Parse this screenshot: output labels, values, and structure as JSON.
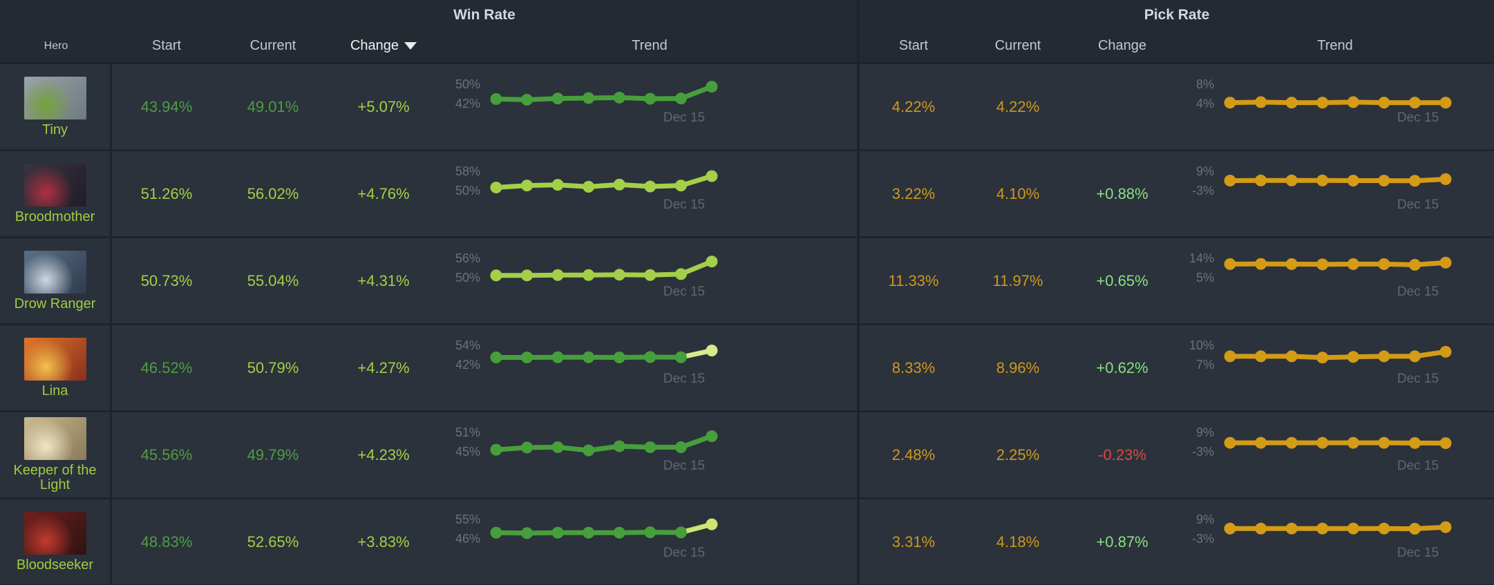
{
  "header": {
    "hero_label": "Hero",
    "win": {
      "title": "Win Rate",
      "start": "Start",
      "current": "Current",
      "change": "Change",
      "trend": "Trend",
      "sorted_by": "Change",
      "sort_direction": "desc"
    },
    "pick": {
      "title": "Pick Rate",
      "start": "Start",
      "current": "Current",
      "change": "Change",
      "trend": "Trend"
    }
  },
  "colors": {
    "page_bg": "#1d242c",
    "header_bg": "#232a32",
    "row_bg": "#2b323b",
    "lime": "#a4cf48",
    "green": "#4f9d43",
    "orange": "#d0981e",
    "pale_green": "#8adf83",
    "red": "#e0493c",
    "axis_label": "#6a737d",
    "date_label": "#5f6771",
    "win_line_green": "#479f3c",
    "win_line_lime": "#a4cf48",
    "pick_line": "#d49b17"
  },
  "rows": [
    {
      "hero": {
        "name": "Tiny",
        "portrait_colors": [
          "#9aa4a8",
          "#6f7a7e",
          "#74a23a"
        ]
      },
      "win": {
        "start": "43.94%",
        "current": "49.01%",
        "change": "+5.07%",
        "trend": {
          "type": "line",
          "axis_labels": [
            "50%",
            "42%"
          ],
          "axis": [
            50,
            42
          ],
          "date": "Dec 15",
          "values": [
            43.9,
            43.6,
            44.1,
            44.3,
            44.5,
            44.0,
            44.1,
            49.0
          ],
          "color": "#479f3c"
        }
      },
      "pick": {
        "start": "4.22%",
        "current": "4.22%",
        "change": "",
        "trend": {
          "type": "line",
          "axis_labels": [
            "8%",
            "4%"
          ],
          "axis": [
            8,
            4
          ],
          "date": "Dec 15",
          "values": [
            4.2,
            4.3,
            4.2,
            4.2,
            4.3,
            4.2,
            4.2,
            4.2
          ],
          "color": "#d49b17"
        }
      }
    },
    {
      "hero": {
        "name": "Broodmother",
        "portrait_colors": [
          "#3a3440",
          "#201c28",
          "#b03040"
        ]
      },
      "win": {
        "start": "51.26%",
        "current": "56.02%",
        "change": "+4.76%",
        "trend": {
          "type": "line",
          "axis_labels": [
            "58%",
            "50%"
          ],
          "axis": [
            58,
            50
          ],
          "date": "Dec 15",
          "values": [
            51.3,
            52.1,
            52.4,
            51.6,
            52.5,
            51.7,
            52.1,
            56.0
          ],
          "color": "#a4cf48"
        }
      },
      "pick": {
        "start": "3.22%",
        "current": "4.10%",
        "change": "+0.88%",
        "trend": {
          "type": "line",
          "axis_labels": [
            "9%",
            "-3%"
          ],
          "axis": [
            9,
            -3
          ],
          "date": "Dec 15",
          "values": [
            3.2,
            3.3,
            3.3,
            3.3,
            3.2,
            3.2,
            3.1,
            4.1
          ],
          "color": "#d49b17"
        }
      }
    },
    {
      "hero": {
        "name": "Drow Ranger",
        "portrait_colors": [
          "#5a7086",
          "#2e3c4e",
          "#cfd8e2"
        ]
      },
      "win": {
        "start": "50.73%",
        "current": "55.04%",
        "change": "+4.31%",
        "trend": {
          "type": "line",
          "axis_labels": [
            "56%",
            "50%"
          ],
          "axis": [
            56,
            50
          ],
          "date": "Dec 15",
          "values": [
            50.7,
            50.7,
            50.8,
            50.8,
            50.9,
            50.8,
            51.1,
            55.0
          ],
          "color": "#a4cf48"
        }
      },
      "pick": {
        "start": "11.33%",
        "current": "11.97%",
        "change": "+0.65%",
        "trend": {
          "type": "line",
          "axis_labels": [
            "14%",
            "5%"
          ],
          "axis": [
            14,
            5
          ],
          "date": "Dec 15",
          "values": [
            11.3,
            11.4,
            11.3,
            11.2,
            11.3,
            11.3,
            11.0,
            12.0
          ],
          "color": "#d49b17"
        }
      }
    },
    {
      "hero": {
        "name": "Lina",
        "portrait_colors": [
          "#e0762a",
          "#8a2f1d",
          "#f4c14b"
        ]
      },
      "win": {
        "start": "46.52%",
        "current": "50.79%",
        "change": "+4.27%",
        "trend": {
          "type": "line",
          "axis_labels": [
            "54%",
            "42%"
          ],
          "axis": [
            54,
            42
          ],
          "date": "Dec 15",
          "values": [
            46.5,
            46.5,
            46.6,
            46.6,
            46.5,
            46.7,
            46.6,
            50.8
          ],
          "color": "#479f3c",
          "last_color": "#d9e98c"
        }
      },
      "pick": {
        "start": "8.33%",
        "current": "8.96%",
        "change": "+0.62%",
        "trend": {
          "type": "line",
          "axis_labels": [
            "10%",
            "7%"
          ],
          "axis": [
            10,
            7
          ],
          "date": "Dec 15",
          "values": [
            8.3,
            8.3,
            8.3,
            8.1,
            8.2,
            8.3,
            8.3,
            9.0
          ],
          "color": "#d49b17"
        }
      }
    },
    {
      "hero": {
        "name": "Keeper of the Light",
        "portrait_colors": [
          "#cbb98f",
          "#8a7a5a",
          "#f0e6c8"
        ]
      },
      "win": {
        "start": "45.56%",
        "current": "49.79%",
        "change": "+4.23%",
        "trend": {
          "type": "line",
          "axis_labels": [
            "51%",
            "45%"
          ],
          "axis": [
            51,
            45
          ],
          "date": "Dec 15",
          "values": [
            45.6,
            46.3,
            46.4,
            45.4,
            46.7,
            46.4,
            46.4,
            49.8
          ],
          "color": "#479f3c"
        }
      },
      "pick": {
        "start": "2.48%",
        "current": "2.25%",
        "change": "-0.23%",
        "trend": {
          "type": "line",
          "axis_labels": [
            "9%",
            "-3%"
          ],
          "axis": [
            9,
            -3
          ],
          "date": "Dec 15",
          "values": [
            2.5,
            2.5,
            2.5,
            2.5,
            2.5,
            2.5,
            2.4,
            2.3
          ],
          "color": "#d49b17"
        }
      }
    },
    {
      "hero": {
        "name": "Bloodseeker",
        "portrait_colors": [
          "#6e1f1f",
          "#2e1312",
          "#c23b2e"
        ]
      },
      "win": {
        "start": "48.83%",
        "current": "52.65%",
        "change": "+3.83%",
        "trend": {
          "type": "line",
          "axis_labels": [
            "55%",
            "46%"
          ],
          "axis": [
            55,
            46
          ],
          "date": "Dec 15",
          "values": [
            48.8,
            48.6,
            48.8,
            48.8,
            48.8,
            49.0,
            48.9,
            52.7
          ],
          "color": "#479f3c",
          "last_color": "#cfe472"
        }
      },
      "pick": {
        "start": "3.31%",
        "current": "4.18%",
        "change": "+0.87%",
        "trend": {
          "type": "line",
          "axis_labels": [
            "9%",
            "-3%"
          ],
          "axis": [
            9,
            -3
          ],
          "date": "Dec 15",
          "values": [
            3.3,
            3.3,
            3.3,
            3.3,
            3.3,
            3.3,
            3.2,
            4.2
          ],
          "color": "#d49b17"
        }
      }
    }
  ]
}
